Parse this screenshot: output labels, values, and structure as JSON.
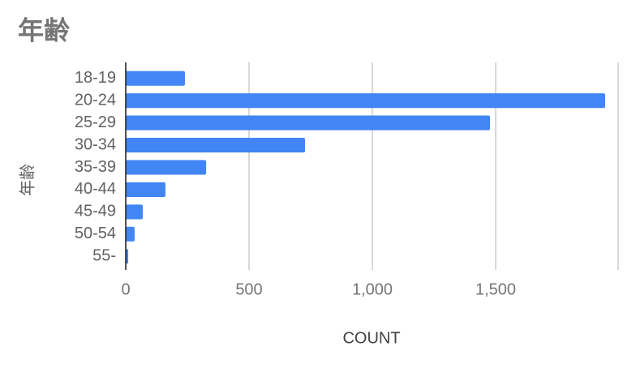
{
  "chart_data": {
    "type": "bar",
    "orientation": "horizontal",
    "title": "年齢",
    "y_label": "年齢",
    "x_label": "COUNT",
    "categories": [
      "18-19",
      "20-24",
      "25-29",
      "30-34",
      "35-39",
      "40-44",
      "45-49",
      "50-54",
      "55-"
    ],
    "values": [
      240,
      1944,
      1477,
      727,
      326,
      161,
      69,
      36,
      10
    ],
    "color": "#4285f4",
    "xlim": [
      0,
      2000
    ],
    "xticks": [
      0,
      500,
      {
        "value": 1000,
        "label": "1,000"
      },
      {
        "value": 1500,
        "label": "1,500"
      }
    ],
    "grid": true
  }
}
